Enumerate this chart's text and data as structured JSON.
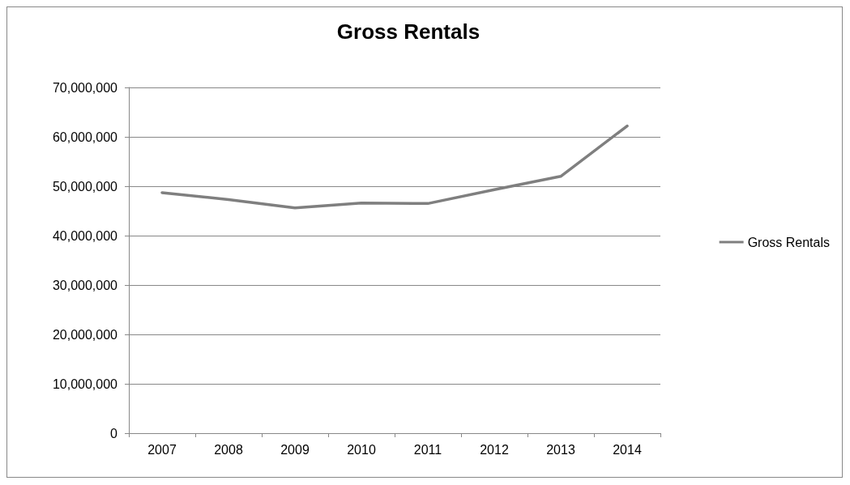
{
  "chart_data": {
    "type": "line",
    "title": "Gross Rentals",
    "categories": [
      "2007",
      "2008",
      "2009",
      "2010",
      "2011",
      "2012",
      "2013",
      "2014"
    ],
    "series": [
      {
        "name": "Gross Rentals",
        "color": "#7f7f7f",
        "values": [
          48700000,
          47300000,
          45600000,
          46600000,
          46500000,
          49300000,
          52000000,
          62200000
        ]
      }
    ],
    "ylim": [
      0,
      70000000
    ],
    "yticks": [
      0,
      {
        "value": 10000000,
        "label": "10,000,000"
      },
      {
        "value": 20000000,
        "label": "20,000,000"
      },
      {
        "value": 30000000,
        "label": "30,000,000"
      },
      {
        "value": 40000000,
        "label": "40,000,000"
      },
      {
        "value": 50000000,
        "label": "50,000,000"
      },
      {
        "value": 60000000,
        "label": "60,000,000"
      },
      {
        "value": 70000000,
        "label": "70,000,000"
      }
    ],
    "grid": "y",
    "legend": "right",
    "marker": "none",
    "line_style": "solid"
  }
}
